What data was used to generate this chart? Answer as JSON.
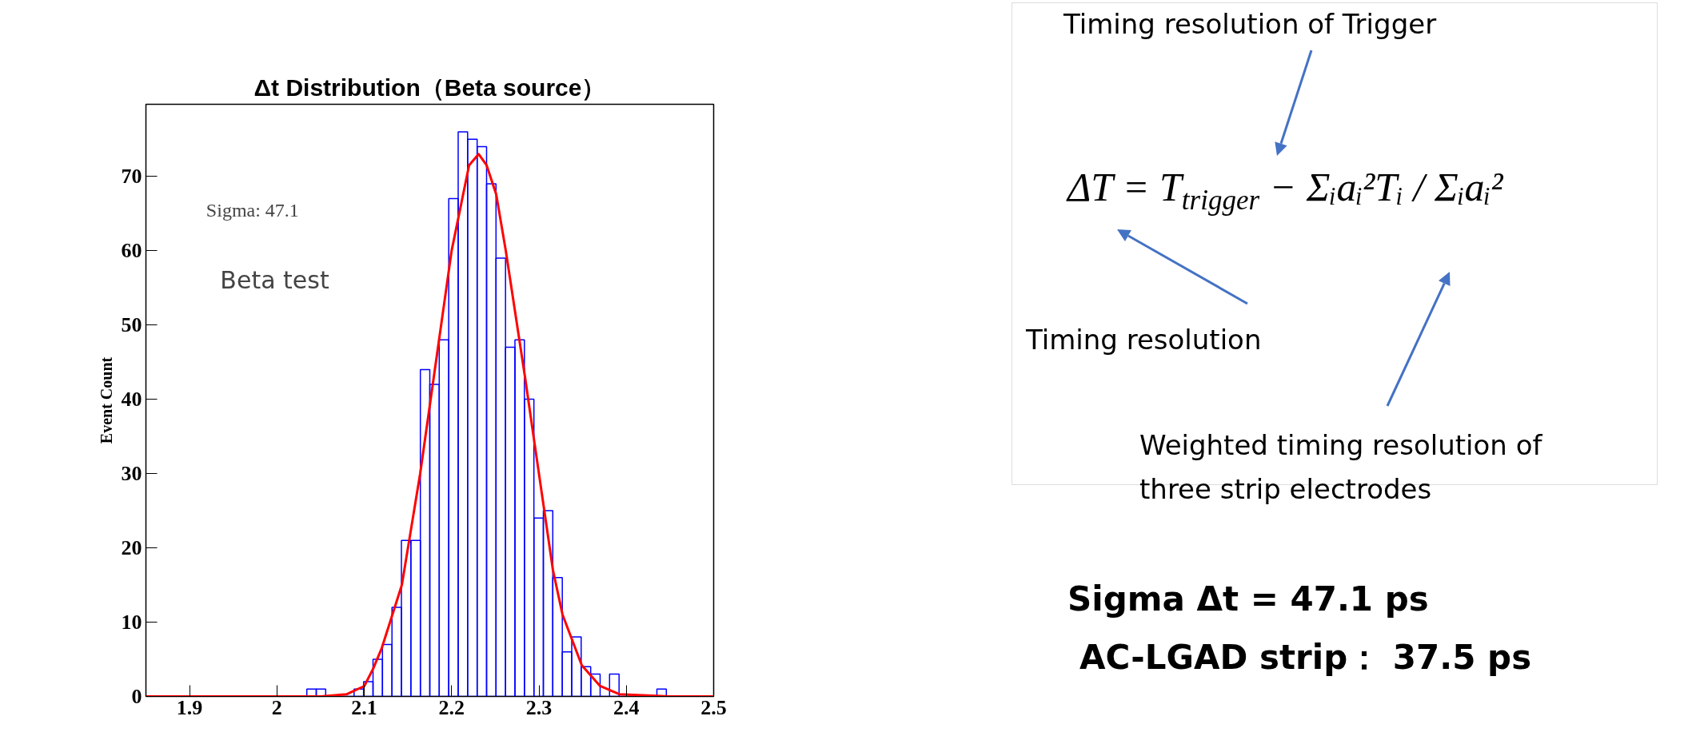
{
  "chart_data": [
    {
      "type": "histogram",
      "title": "Δt Distribution（Beta source）",
      "ylabel": "Event Count",
      "color": "#0000ff",
      "bins": [
        1.85,
        1.8608,
        1.8717,
        1.8825,
        1.8933,
        1.9042,
        1.915,
        1.9258,
        1.9367,
        1.9475,
        1.9583,
        1.9692,
        1.98,
        1.9908,
        2.0017,
        2.0125,
        2.0233,
        2.0342,
        2.045,
        2.0558,
        2.0667,
        2.0775,
        2.0883,
        2.0992,
        2.11,
        2.1208,
        2.1317,
        2.1425,
        2.1533,
        2.1642,
        2.175,
        2.1858,
        2.1967,
        2.2075,
        2.2183,
        2.2292,
        2.24,
        2.2508,
        2.2617,
        2.2725,
        2.2833,
        2.2942,
        2.305,
        2.3158,
        2.3267,
        2.3375,
        2.3483,
        2.3592,
        2.37,
        2.3808,
        2.3917,
        2.4025,
        2.4133,
        2.4242,
        2.435,
        2.4458,
        2.4567,
        2.4675,
        2.4783,
        2.4892,
        2.5
      ],
      "values": [
        0,
        0,
        0,
        0,
        0,
        0,
        0,
        0,
        0,
        0,
        0,
        0,
        0,
        0,
        0,
        0,
        0,
        1,
        1,
        0,
        0,
        0,
        1,
        2,
        5,
        7,
        12,
        21,
        21,
        44,
        42,
        48,
        67,
        76,
        75,
        74,
        69,
        59,
        47,
        48,
        40,
        24,
        25,
        16,
        6,
        8,
        4,
        3,
        0,
        3,
        0,
        0,
        0,
        0,
        1,
        0,
        0,
        0,
        0,
        0
      ],
      "series": [
        {
          "type": "line",
          "color": "#ff0000",
          "x": [
            1.85,
            2.0,
            2.05,
            2.08,
            2.1,
            2.11,
            2.12,
            2.143,
            2.164,
            2.2,
            2.22,
            2.231,
            2.24,
            2.251,
            2.262,
            2.284,
            2.295,
            2.316,
            2.327,
            2.349,
            2.37,
            2.392,
            2.45,
            2.5
          ],
          "values": [
            0,
            0,
            0,
            0.3,
            1.4,
            3.7,
            6.5,
            15,
            30,
            60,
            71.5,
            73,
            71.5,
            67.6,
            60,
            43,
            34,
            17,
            11,
            4.2,
            1.4,
            0.3,
            0,
            0
          ]
        }
      ],
      "xlim": [
        1.85,
        2.5
      ],
      "ylim": [
        0,
        79.7
      ],
      "xticks": [
        1.9,
        2,
        2.1,
        2.2,
        2.3,
        2.4,
        2.5
      ],
      "yticks": [
        0,
        10,
        20,
        30,
        40,
        50,
        60,
        70
      ],
      "grid": false,
      "line_style": "solid",
      "marker": "none",
      "annotations": [
        "Sigma: 47.1",
        "Beta  test"
      ]
    },
    {
      "type": "other",
      "annotations": [
        "Timing resolution of Trigger",
        "ΔT = T$_{trigger}$ − Σᵢaᵢ²Tᵢ / Σᵢaᵢ²",
        "Timing resolution",
        "Weighted timing resolution of three strip electrodes",
        "Sigma Δt = 47.1 ps",
        "AC-LGAD strip：  37.5 ps"
      ]
    }
  ]
}
